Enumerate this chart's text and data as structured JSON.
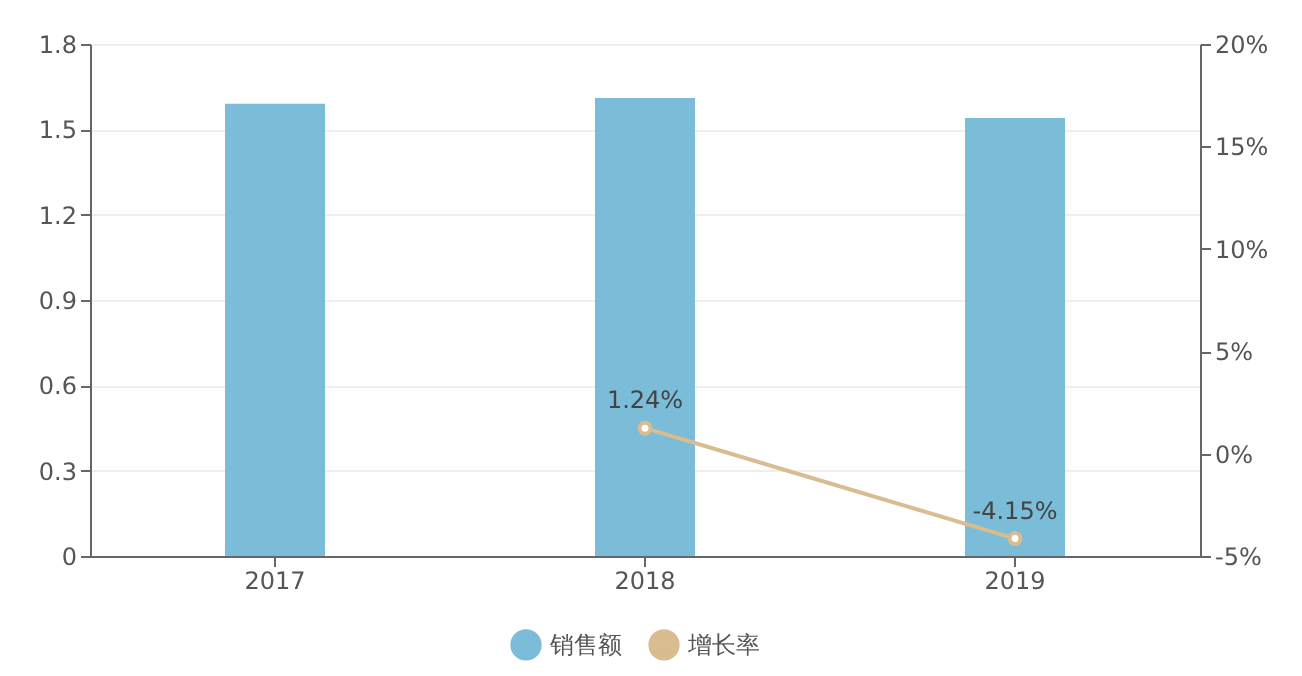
{
  "chart_data": {
    "type": "bar",
    "categories": [
      "2017",
      "2018",
      "2019"
    ],
    "series": [
      {
        "name": "销售额",
        "color": "#7bbcd9",
        "values": [
          1.59,
          1.61,
          1.54
        ]
      },
      {
        "name": "增长率",
        "type": "line",
        "axis": "y2",
        "color": "#d9bc8f",
        "values": [
          null,
          1.24,
          -4.15
        ],
        "value_labels": [
          null,
          "1.24%",
          "-4.15%"
        ]
      }
    ],
    "ylim": [
      0,
      1.8
    ],
    "yticks": [
      0,
      0.3,
      0.6,
      0.9,
      1.2,
      1.5,
      1.8
    ],
    "y2lim": [
      -5,
      20
    ],
    "y2ticks": [
      {
        "value": -5,
        "label": "-5%"
      },
      {
        "value": 0,
        "label": "0%"
      },
      {
        "value": 5,
        "label": "5%"
      },
      {
        "value": 10,
        "label": "10%"
      },
      {
        "value": 15,
        "label": "15%"
      },
      {
        "value": 20,
        "label": "20%"
      }
    ],
    "grid": "y",
    "legend": "bottom",
    "marker": "circle"
  }
}
